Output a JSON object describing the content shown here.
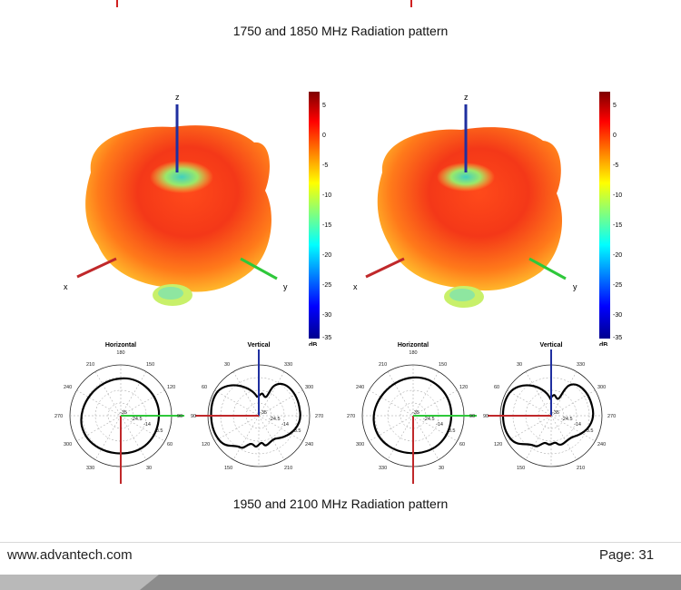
{
  "captions": {
    "top": "1750 and 1850 MHz Radiation pattern",
    "bottom": "1950 and 2100 MHz Radiation pattern"
  },
  "footer": {
    "url": "www.advantech.com",
    "page": "Page: 31"
  },
  "colors": {
    "x_axis": "#c0282a",
    "y_axis": "#2ec83a",
    "z_axis": "#1f2fa0",
    "colormap": "jet"
  },
  "axes3d": {
    "x": "x",
    "y": "y",
    "z": "z"
  },
  "colorbar": {
    "ticks": [
      "5",
      "0",
      "-5",
      "-10",
      "-15",
      "-20",
      "-25",
      "-30",
      "-35"
    ],
    "unit": "dB"
  },
  "polar": {
    "horizontal_title": "Horizontal",
    "vertical_title": "Vertical",
    "horizontal_angles": [
      "180",
      "150",
      "120",
      "90",
      "60",
      "30",
      "330",
      "300",
      "270",
      "240",
      "210"
    ],
    "vertical_angles": [
      "330",
      "300",
      "270",
      "240",
      "210",
      "150",
      "120",
      "90",
      "60",
      "30"
    ],
    "ring_labels": [
      "-35",
      "-24.5",
      "-14",
      "-3.5"
    ]
  }
}
